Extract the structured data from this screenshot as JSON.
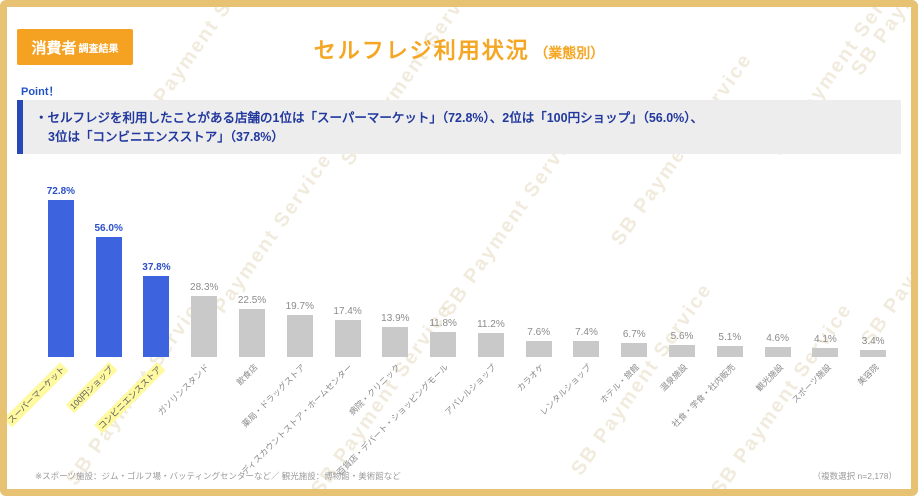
{
  "header": {
    "badge_main": "消費者",
    "badge_sub": "調査結果",
    "title": "セルフレジ利用状況",
    "title_suffix": "（業態別）"
  },
  "point": {
    "label": "Point！",
    "line1": "・セルフレジを利用したことがある店舗の1位は「スーパーマーケット」（72.8%）、2位は「100円ショップ」（56.0%）、",
    "line2": "3位は「コンビニエンスストア」（37.8%）"
  },
  "chart_data": {
    "type": "bar",
    "categories": [
      "スーパーマーケット",
      "100円ショップ",
      "コンビニエンスストア",
      "ガソリンスタンド",
      "飲食店",
      "薬局・ドラッグストア",
      "ディスカウントストア・ホームセンター",
      "病院・クリニック",
      "百貨店・デパート・ショッピングモール",
      "アパレルショップ",
      "カラオケ",
      "レンタルショップ",
      "ホテル・旅館",
      "温泉施設",
      "社食・学食・社内販売",
      "観光施設",
      "スポーツ施設",
      "美容院"
    ],
    "values": [
      72.8,
      56.0,
      37.8,
      28.3,
      22.5,
      19.7,
      17.4,
      13.9,
      11.8,
      11.2,
      7.6,
      7.4,
      6.7,
      5.6,
      5.1,
      4.6,
      4.1,
      3.4
    ],
    "value_suffix": "%",
    "highlight_count": 3,
    "ylim": [
      0,
      80
    ],
    "grid": false,
    "legend": "none",
    "colors": {
      "highlight_bar": "#3d64de",
      "default_bar": "#c9c9c9",
      "highlight_value": "#2b50c8",
      "default_value": "#8b8b8b",
      "label_highlight_bg": "#fff9a0",
      "badge_bg": "#f5a122",
      "title": "#f5a623",
      "frame_border": "#e7c272"
    }
  },
  "footer": {
    "note_left": "※スポーツ施設：ジム・ゴルフ場・バッティングセンターなど／ 観光施設：博物館・美術館など",
    "note_right": "（複数選択 n=2,178）"
  },
  "watermark": {
    "text": "SB Payment Service"
  }
}
